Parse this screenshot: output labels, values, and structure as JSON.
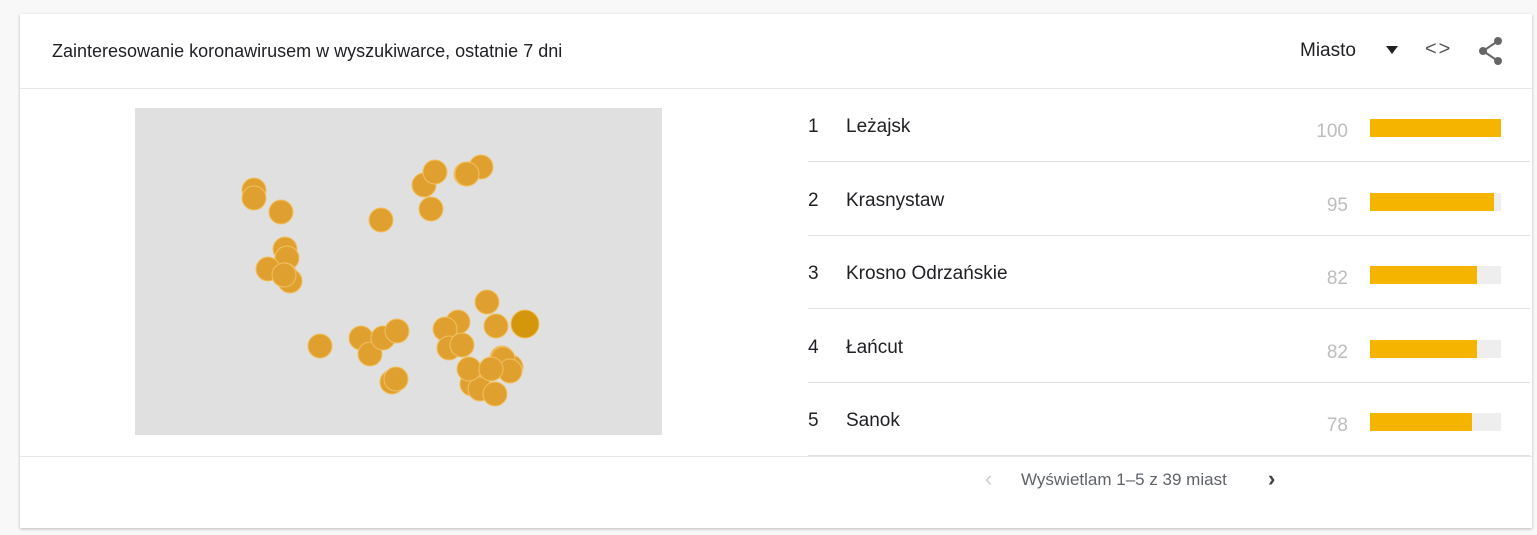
{
  "header": {
    "title": "Zainteresowanie koronawirusem w wyszukiwarce, ostatnie 7 dni",
    "resolution": "Miasto",
    "embed_icon": "code-icon",
    "share_icon": "share-icon"
  },
  "list": [
    {
      "rank": "1",
      "name": "Leżajsk",
      "value": "100",
      "pct": 100
    },
    {
      "rank": "2",
      "name": "Krasnystaw",
      "value": "95",
      "pct": 95
    },
    {
      "rank": "3",
      "name": "Krosno Odrzańskie",
      "value": "82",
      "pct": 82
    },
    {
      "rank": "4",
      "name": "Łańcut",
      "value": "82",
      "pct": 82
    },
    {
      "rank": "5",
      "name": "Sanok",
      "value": "78",
      "pct": 78
    }
  ],
  "pagination": {
    "text": "Wyświetlam 1–5 z 39 miast"
  },
  "colors": {
    "bar": "#f4b400",
    "marker": "#e0a030",
    "map": "#e0e0e0"
  }
}
